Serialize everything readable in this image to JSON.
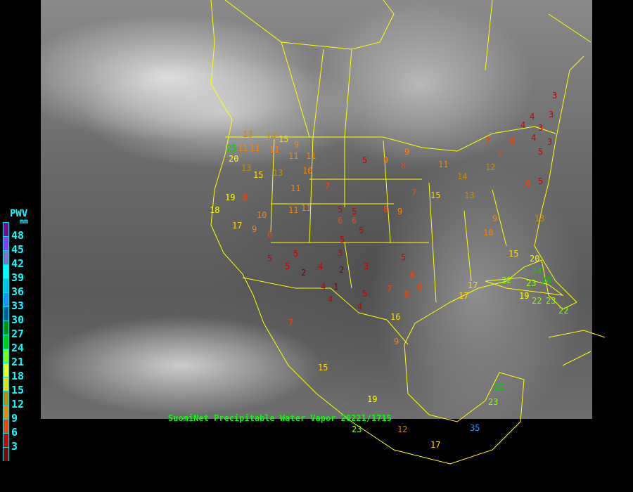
{
  "caption": "SuomiNet Precipitable Water Vapor  20221/1715",
  "legend": {
    "title": "PWV",
    "unit": "mm",
    "ticks": [
      "48",
      "45",
      "42",
      "39",
      "36",
      "33",
      "30",
      "27",
      "24",
      "21",
      "18",
      "15",
      "12",
      "9",
      "6",
      "3"
    ],
    "colors": [
      "#8b008b",
      "#9932ff",
      "#8a6fd0",
      "#00ffff",
      "#00c0f0",
      "#1e90ff",
      "#005f9f",
      "#009000",
      "#00d000",
      "#80ff00",
      "#ffff00",
      "#ffd700",
      "#c88a00",
      "#ff8000",
      "#ff4000",
      "#d00000",
      "#8b0000"
    ]
  },
  "boundary_color": "#ffff00",
  "stations": [
    "3",
    "3",
    "4",
    "4",
    "3",
    "3",
    "4",
    "7",
    "6",
    "5",
    "9",
    "5",
    "9",
    "9",
    "11",
    "11",
    "11",
    "14",
    "15",
    "13",
    "13",
    "25",
    "20",
    "11",
    "11",
    "13",
    "15",
    "10",
    "11",
    "8",
    "7",
    "5",
    "5",
    "6",
    "5",
    "8",
    "9",
    "7",
    "8",
    "5",
    "6",
    "5",
    "5",
    "5",
    "2",
    "4",
    "3",
    "2",
    "1",
    "3",
    "4",
    "4",
    "5",
    "7",
    "5",
    "6",
    "8",
    "6",
    "4",
    "11",
    "14",
    "15",
    "13",
    "16",
    "17",
    "19",
    "18",
    "17",
    "9",
    "10",
    "6",
    "11",
    "11",
    "12",
    "9",
    "10",
    "7",
    "6",
    "5",
    "15",
    "13",
    "17",
    "20",
    "22",
    "23",
    "24",
    "26",
    "23",
    "22",
    "19",
    "22",
    "9",
    "7",
    "15",
    "19",
    "17",
    "25",
    "23",
    "35",
    "12",
    "23"
  ]
}
